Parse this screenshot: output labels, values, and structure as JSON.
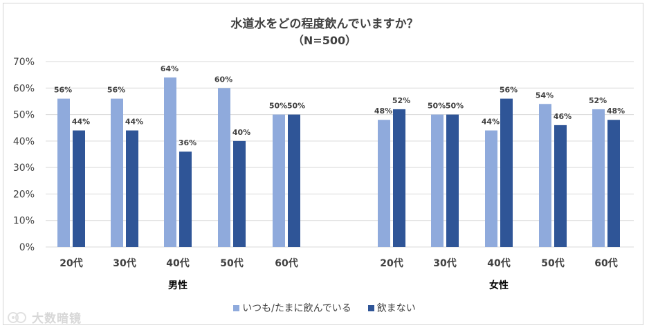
{
  "chart_data": {
    "type": "bar",
    "title": "水道水をどの程度飲んでいますか？",
    "subtitle": "（N=500）",
    "ylim": [
      0,
      70
    ],
    "yticks": [
      "0%",
      "10%",
      "20%",
      "30%",
      "40%",
      "50%",
      "60%",
      "70%"
    ],
    "groups": [
      {
        "name": "男性",
        "categories": [
          "20代",
          "30代",
          "40代",
          "50代",
          "60代"
        ],
        "series": [
          {
            "name": "いつも/たまに飲んでいる",
            "values": [
              56,
              56,
              64,
              60,
              50
            ],
            "labels": [
              "56%",
              "56%",
              "64%",
              "60%",
              "50%"
            ]
          },
          {
            "name": "飲まない",
            "values": [
              44,
              44,
              36,
              40,
              50
            ],
            "labels": [
              "44%",
              "44%",
              "36%",
              "40%",
              "50%"
            ]
          }
        ]
      },
      {
        "name": "女性",
        "categories": [
          "20代",
          "30代",
          "40代",
          "50代",
          "60代"
        ],
        "series": [
          {
            "name": "いつも/たまに飲んでいる",
            "values": [
              48,
              50,
              44,
              54,
              52
            ],
            "labels": [
              "48%",
              "50%",
              "44%",
              "54%",
              "52%"
            ]
          },
          {
            "name": "飲まない",
            "values": [
              52,
              50,
              56,
              46,
              48
            ],
            "labels": [
              "52%",
              "50%",
              "56%",
              "46%",
              "48%"
            ]
          }
        ]
      }
    ],
    "legend": {
      "position": "bottom",
      "items": [
        {
          "name": "いつも/たまに飲んでいる",
          "color": "#8faadc"
        },
        {
          "name": "飲まない",
          "color": "#2f5597"
        }
      ]
    },
    "colors": {
      "light": "#8faadc",
      "dark": "#2f5597",
      "grid": "#d9d9d9",
      "text": "#404040"
    }
  },
  "watermark": {
    "text": "大数暗镜"
  }
}
